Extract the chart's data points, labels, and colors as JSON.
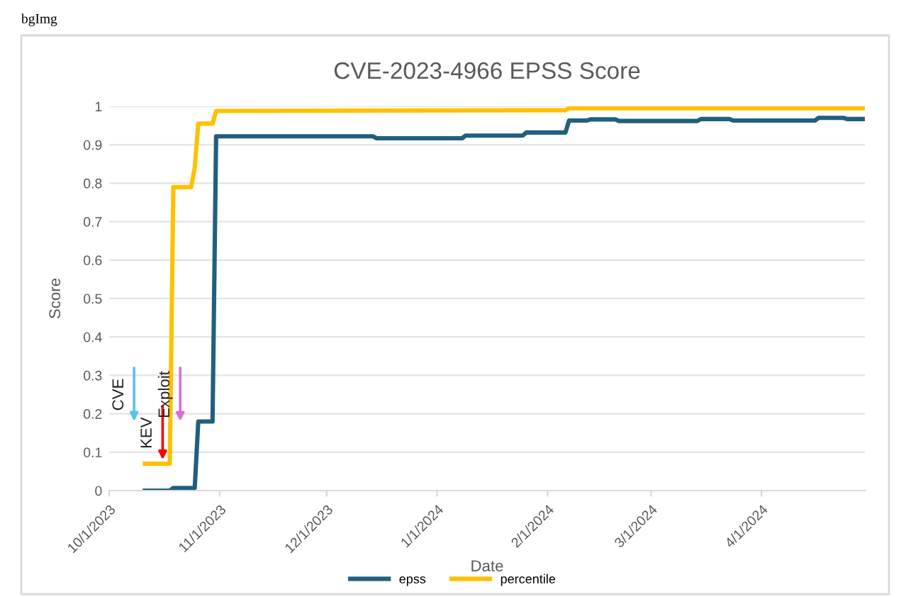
{
  "chart_data": {
    "type": "line",
    "title": "CVE-2023-4966 EPSS Score",
    "xlabel": "Date",
    "ylabel": "Score",
    "annotations": [
      "bgImg",
      "CVE",
      {
        "text": "KEV",
        "x": "2023-10-16",
        "y": 0.07
      },
      "Exploit"
    ],
    "xlim": [
      "2023-10-01",
      "2024-04-30"
    ],
    "xticks": [
      {
        "value": "2023-10-01",
        "label": "10/1/2023"
      },
      {
        "value": "2023-11-01",
        "label": "11/1/2023"
      },
      {
        "value": "2023-12-01",
        "label": "12/1/2023"
      },
      {
        "value": "2024-01-01",
        "label": "1/1/2024"
      },
      {
        "value": "2024-02-01",
        "label": "2/1/2024"
      },
      {
        "value": "2024-03-01",
        "label": "3/1/2024"
      },
      {
        "value": "2024-04-01",
        "label": "4/1/2024"
      }
    ],
    "ylim": [
      0,
      1
    ],
    "yticks": [
      0,
      0.1,
      0.2,
      0.3,
      0.4,
      0.5,
      0.6,
      0.7,
      0.8,
      0.9,
      1
    ],
    "grid": "y",
    "legend": "bottom",
    "marker": "none",
    "line_style": "solid",
    "series": [
      {
        "name": "epss",
        "color": "#215f7e",
        "x": [
          "2023-10-11",
          "2023-10-18",
          "2023-10-19",
          "2023-10-25",
          "2023-10-26",
          "2023-10-30",
          "2023-10-31",
          "2023-12-14",
          "2023-12-15",
          "2024-01-08",
          "2024-01-09",
          "2024-01-25",
          "2024-01-26",
          "2024-02-06",
          "2024-02-07",
          "2024-02-12",
          "2024-02-13",
          "2024-02-20",
          "2024-02-21",
          "2024-03-14",
          "2024-03-15",
          "2024-03-23",
          "2024-03-24",
          "2024-04-16",
          "2024-04-17",
          "2024-04-24",
          "2024-04-25",
          "2024-04-30"
        ],
        "values": [
          0,
          0,
          0.007,
          0.007,
          0.18,
          0.18,
          0.922,
          0.922,
          0.917,
          0.917,
          0.924,
          0.924,
          0.932,
          0.932,
          0.963,
          0.963,
          0.966,
          0.966,
          0.962,
          0.962,
          0.967,
          0.967,
          0.963,
          0.963,
          0.97,
          0.97,
          0.967,
          0.967
        ]
      },
      {
        "name": "percentile",
        "color": "#ffc000",
        "x": [
          "2023-10-11",
          "2023-10-18",
          "2023-10-19",
          "2023-10-24",
          "2023-10-25",
          "2023-10-26",
          "2023-10-30",
          "2023-10-31",
          "2024-02-06",
          "2024-02-07",
          "2024-04-30"
        ],
        "values": [
          0.07,
          0.07,
          0.79,
          0.79,
          0.84,
          0.955,
          0.955,
          0.988,
          0.99,
          0.995,
          0.995
        ]
      }
    ]
  }
}
